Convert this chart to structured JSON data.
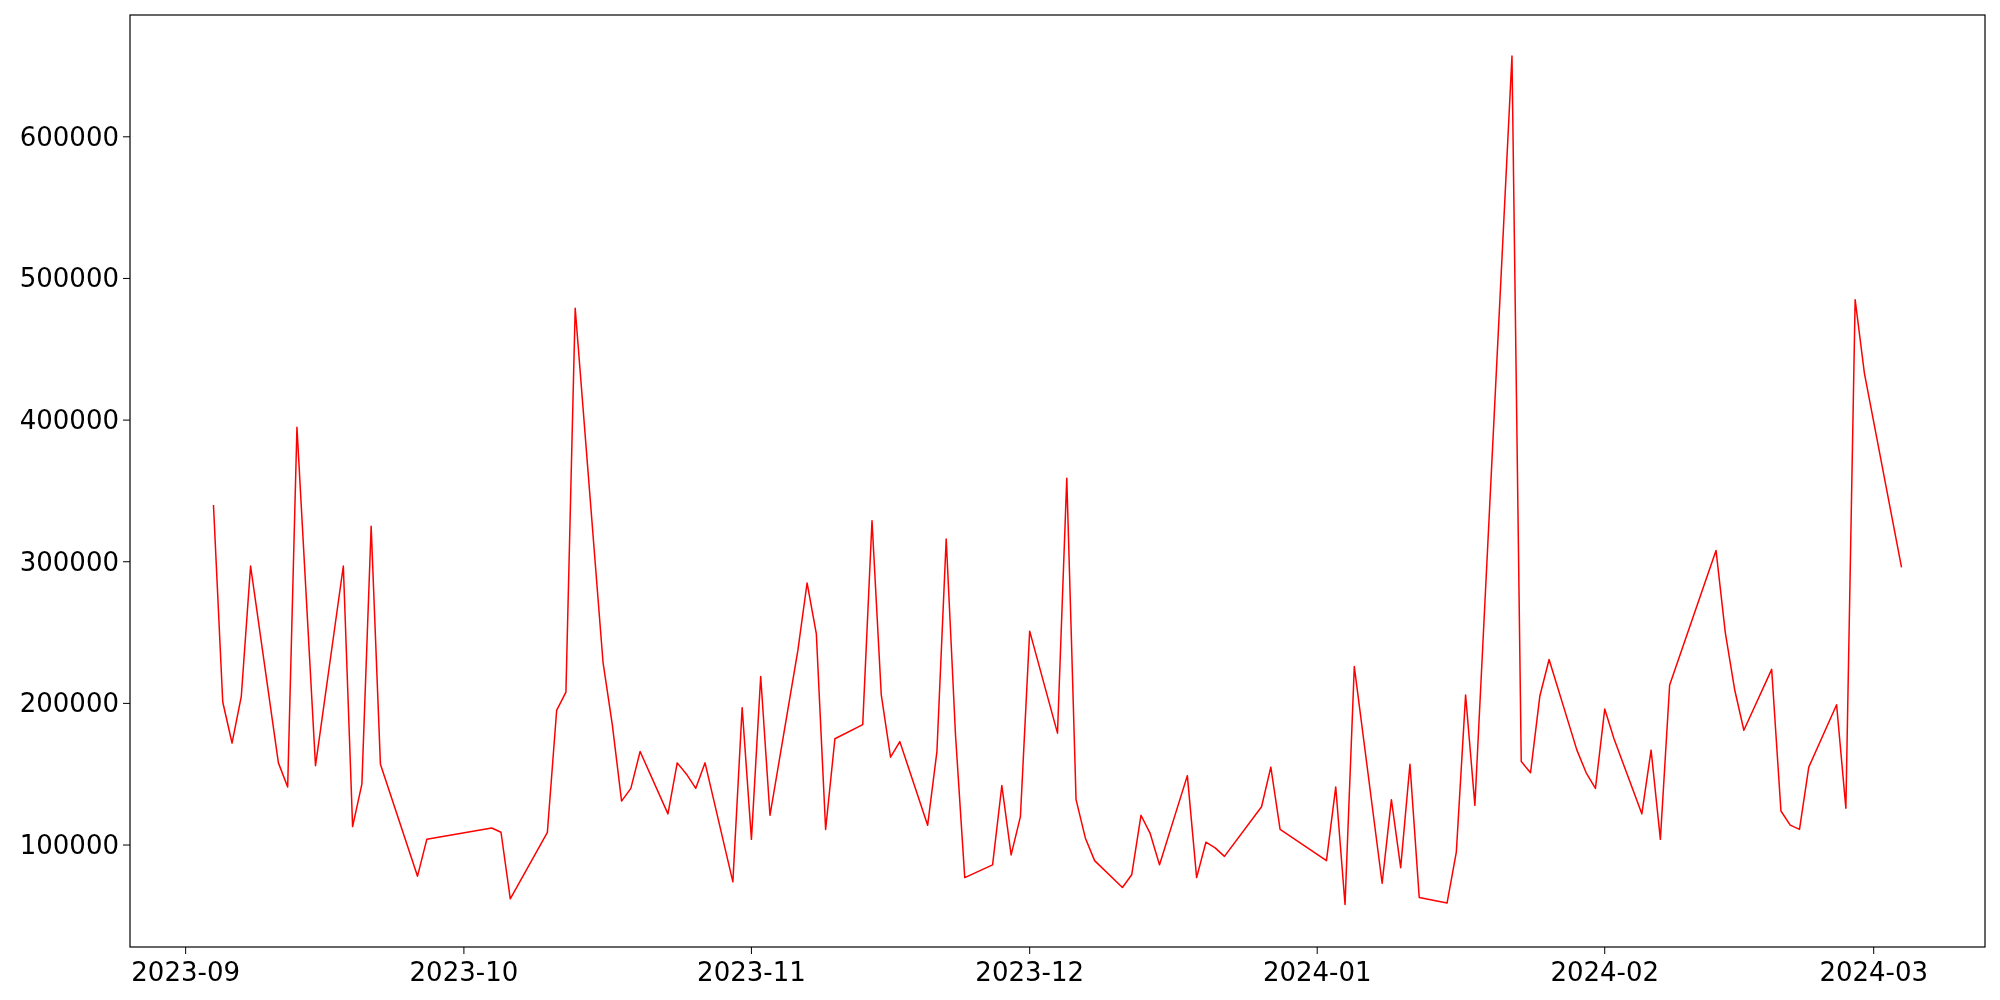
{
  "chart_data": {
    "type": "line",
    "x": [
      "2023-09-04",
      "2023-09-05",
      "2023-09-06",
      "2023-09-07",
      "2023-09-08",
      "2023-09-11",
      "2023-09-12",
      "2023-09-13",
      "2023-09-15",
      "2023-09-18",
      "2023-09-19",
      "2023-09-20",
      "2023-09-21",
      "2023-09-22",
      "2023-09-26",
      "2023-09-27",
      "2023-10-04",
      "2023-10-05",
      "2023-10-06",
      "2023-10-10",
      "2023-10-11",
      "2023-10-12",
      "2023-10-13",
      "2023-10-16",
      "2023-10-17",
      "2023-10-18",
      "2023-10-19",
      "2023-10-20",
      "2023-10-23",
      "2023-10-24",
      "2023-10-25",
      "2023-10-26",
      "2023-10-27",
      "2023-10-30",
      "2023-10-31",
      "2023-11-01",
      "2023-11-02",
      "2023-11-03",
      "2023-11-06",
      "2023-11-07",
      "2023-11-08",
      "2023-11-09",
      "2023-11-10",
      "2023-11-13",
      "2023-11-14",
      "2023-11-15",
      "2023-11-16",
      "2023-11-17",
      "2023-11-20",
      "2023-11-21",
      "2023-11-22",
      "2023-11-23",
      "2023-11-24",
      "2023-11-27",
      "2023-11-28",
      "2023-11-29",
      "2023-11-30",
      "2023-12-01",
      "2023-12-04",
      "2023-12-05",
      "2023-12-06",
      "2023-12-07",
      "2023-12-08",
      "2023-12-11",
      "2023-12-12",
      "2023-12-13",
      "2023-12-14",
      "2023-12-15",
      "2023-12-18",
      "2023-12-19",
      "2023-12-20",
      "2023-12-21",
      "2023-12-22",
      "2023-12-26",
      "2023-12-27",
      "2023-12-28",
      "2024-01-02",
      "2024-01-03",
      "2024-01-04",
      "2024-01-05",
      "2024-01-08",
      "2024-01-09",
      "2024-01-10",
      "2024-01-11",
      "2024-01-12",
      "2024-01-15",
      "2024-01-16",
      "2024-01-17",
      "2024-01-18",
      "2024-01-22",
      "2024-01-23",
      "2024-01-24",
      "2024-01-25",
      "2024-01-26",
      "2024-01-29",
      "2024-01-30",
      "2024-01-31",
      "2024-02-01",
      "2024-02-02",
      "2024-02-05",
      "2024-02-06",
      "2024-02-07",
      "2024-02-08",
      "2024-02-13",
      "2024-02-14",
      "2024-02-15",
      "2024-02-16",
      "2024-02-19",
      "2024-02-20",
      "2024-02-21",
      "2024-02-22",
      "2024-02-23",
      "2024-02-26",
      "2024-02-27",
      "2024-02-28",
      "2024-02-29",
      "2024-03-04"
    ],
    "series": [
      {
        "color": "#ff0000",
        "values": [
          340000,
          201000,
          172000,
          205000,
          297000,
          158000,
          141000,
          395000,
          156000,
          297000,
          113000,
          143000,
          325000,
          157000,
          78000,
          104000,
          112000,
          109000,
          62000,
          109000,
          195000,
          208000,
          479000,
          229000,
          185000,
          131000,
          140000,
          166000,
          122000,
          158000,
          150000,
          140000,
          158000,
          74000,
          197000,
          104000,
          219000,
          121000,
          237000,
          285000,
          249000,
          111000,
          175000,
          185000,
          329000,
          206000,
          162000,
          173000,
          114000,
          166000,
          316000,
          178000,
          77000,
          86000,
          142000,
          93000,
          120000,
          251000,
          179000,
          359000,
          132000,
          105000,
          89000,
          70000,
          79000,
          121000,
          108000,
          86000,
          149000,
          77000,
          102000,
          98000,
          92000,
          127000,
          155000,
          111000,
          89000,
          141000,
          58000,
          226000,
          73000,
          132000,
          84000,
          157000,
          63000,
          59000,
          95000,
          206000,
          128000,
          657000,
          159000,
          151000,
          205000,
          231000,
          167000,
          151000,
          140000,
          196000,
          175000,
          122000,
          167000,
          104000,
          213000,
          308000,
          250000,
          210000,
          181000,
          224000,
          124000,
          114000,
          111000,
          155000,
          199000,
          126000,
          485000,
          433000,
          296000
        ]
      }
    ],
    "xlim": [
      "2023-08-26",
      "2024-03-13"
    ],
    "xticks": [
      {
        "value": "2023-09-01",
        "label": "2023-09"
      },
      {
        "value": "2023-10-01",
        "label": "2023-10"
      },
      {
        "value": "2023-11-01",
        "label": "2023-11"
      },
      {
        "value": "2023-12-01",
        "label": "2023-12"
      },
      {
        "value": "2024-01-01",
        "label": "2024-01"
      },
      {
        "value": "2024-02-01",
        "label": "2024-02"
      },
      {
        "value": "2024-03-01",
        "label": "2024-03"
      }
    ],
    "ylim": [
      28000,
      686000
    ],
    "yticks": [
      100000,
      200000,
      300000,
      400000,
      500000,
      600000
    ],
    "grid": false,
    "marker": "none",
    "line_style": "solid"
  }
}
